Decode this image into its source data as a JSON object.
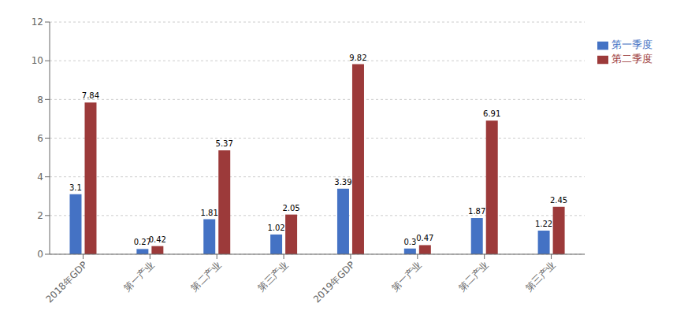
{
  "chart_data": {
    "type": "bar",
    "categories": [
      "2018年GDP",
      "第一产业",
      "第二产业",
      "第三产业",
      "2019年GDP",
      "第一产业",
      "第二产业",
      "第三产业"
    ],
    "series": [
      {
        "name": "第一季度",
        "color": "#4472C4",
        "values": [
          3.1,
          0.27,
          1.81,
          1.02,
          3.39,
          0.3,
          1.87,
          1.22
        ]
      },
      {
        "name": "第二季度",
        "color": "#9C3A3A",
        "values": [
          7.84,
          0.42,
          5.37,
          2.05,
          9.82,
          0.47,
          6.91,
          2.45
        ]
      }
    ],
    "ylim": [
      0,
      12
    ],
    "yticks": [
      0,
      2,
      4,
      6,
      8,
      10,
      12
    ],
    "grid": true,
    "data_labels": true,
    "legend": "right"
  }
}
